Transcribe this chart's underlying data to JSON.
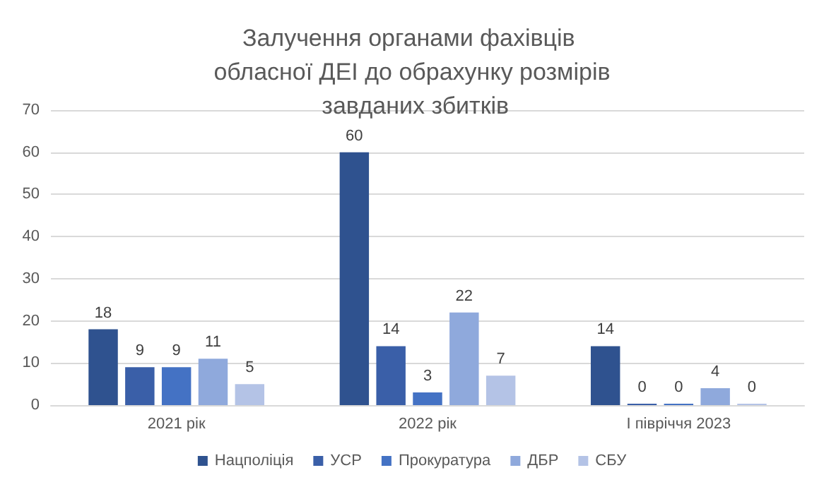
{
  "chart_data": {
    "type": "bar",
    "title": "Залучення органами фахівців обласної ДЕІ до обрахунку розмірів завданих збитків",
    "categories": [
      "2021 рік",
      "2022 рік",
      "І півріччя 2023"
    ],
    "series": [
      {
        "name": "Нацполіція",
        "color": "#2f528f",
        "values": [
          18,
          60,
          14
        ]
      },
      {
        "name": "УСР",
        "color": "#3a5fa8",
        "values": [
          9,
          14,
          0
        ]
      },
      {
        "name": "Прокуратура",
        "color": "#4472c4",
        "values": [
          9,
          3,
          0
        ]
      },
      {
        "name": "ДБР",
        "color": "#8fa9dc",
        "values": [
          11,
          22,
          4
        ]
      },
      {
        "name": "СБУ",
        "color": "#b4c3e6",
        "values": [
          5,
          7,
          0
        ]
      }
    ],
    "ylim": [
      0,
      70
    ],
    "yticks": [
      0,
      10,
      20,
      30,
      40,
      50,
      60,
      70
    ],
    "grid": "y",
    "legend": "bottom",
    "data_labels": true
  }
}
